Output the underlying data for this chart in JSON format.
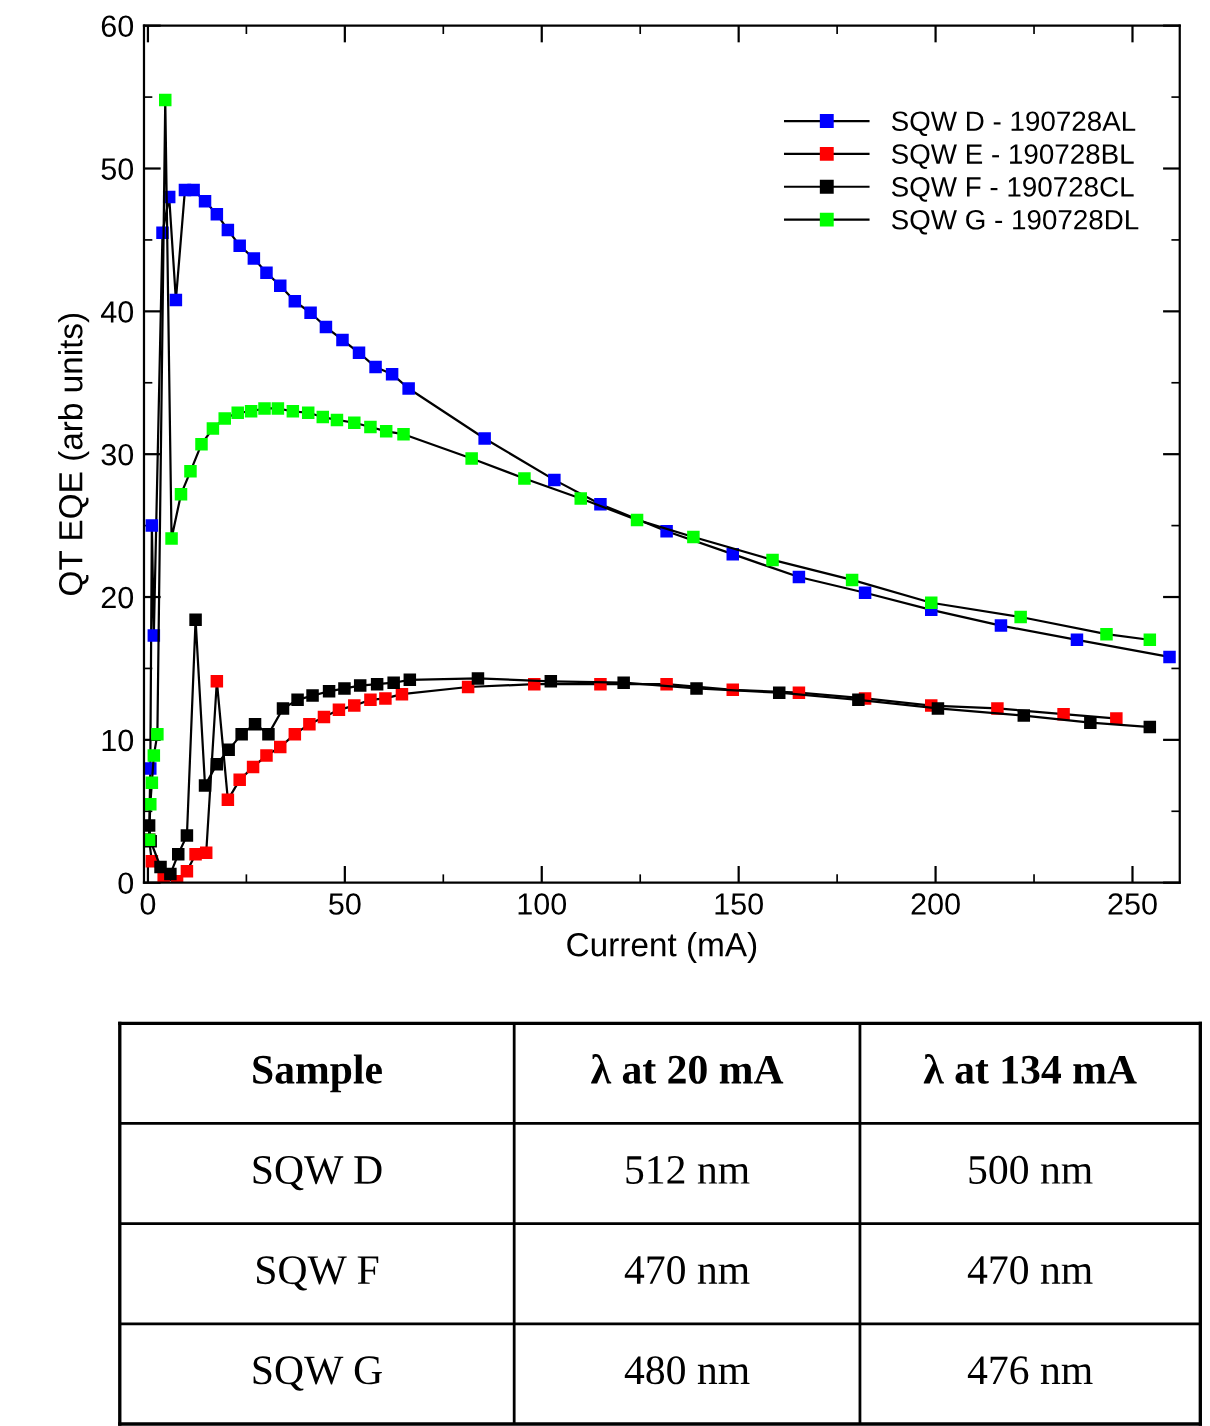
{
  "chart_data": [
    {
      "type": "line",
      "xlabel": "Current (mA)",
      "ylabel": "QT EQE (arb units)",
      "xlim": [
        -1,
        262
      ],
      "ylim": [
        0,
        60
      ],
      "xticks": [
        0,
        50,
        100,
        150,
        200,
        250
      ],
      "yticks": [
        0,
        10,
        20,
        30,
        40,
        50,
        60
      ],
      "marker": "square",
      "line_style": "solid",
      "legend": "top right",
      "grid": false,
      "series": [
        {
          "name": "SQW D - 190728AL",
          "color": "#0000ff",
          "x": [
            0.3,
            0.6,
            1,
            1.5,
            3.7,
            5.4,
            7.1,
            9.4,
            11.6,
            14.5,
            17.5,
            20.3,
            23.3,
            26.9,
            30.1,
            33.6,
            37.3,
            41.3,
            45.2,
            49.4,
            53.6,
            57.8,
            62,
            66.2,
            85.5,
            103.2,
            114.9,
            131.7,
            148.5,
            165.3,
            182.1,
            198.9,
            216.6,
            235.9,
            259.4
          ],
          "values": [
            3,
            8,
            25,
            17.3,
            45.5,
            48,
            40.8,
            48.5,
            48.5,
            47.7,
            46.8,
            45.7,
            44.6,
            43.7,
            42.7,
            41.8,
            40.7,
            39.9,
            38.9,
            38,
            37.1,
            36.1,
            35.6,
            34.6,
            31.1,
            28.2,
            26.5,
            24.6,
            23,
            21.4,
            20.3,
            19.1,
            18,
            17,
            15.8
          ]
        },
        {
          "name": "SQW E - 190728BL",
          "color": "#ff0000",
          "x": [
            0.3,
            1,
            4,
            7.4,
            9.9,
            12.1,
            14.8,
            17.5,
            20.3,
            23.3,
            26.7,
            30.1,
            33.6,
            37.3,
            41,
            44.7,
            48.5,
            52.4,
            56.5,
            60.3,
            64.5,
            81.3,
            98.1,
            114.9,
            131.7,
            148.5,
            165.3,
            182.1,
            198.9,
            215.7,
            232.5,
            245.9
          ],
          "values": [
            3,
            1.5,
            0.3,
            0.1,
            0.8,
            2,
            2.1,
            14.1,
            5.8,
            7.2,
            8.1,
            8.9,
            9.5,
            10.4,
            11.1,
            11.6,
            12.1,
            12.4,
            12.8,
            12.9,
            13.2,
            13.7,
            13.9,
            13.9,
            13.9,
            13.5,
            13.3,
            12.9,
            12.4,
            12.2,
            11.8,
            11.5
          ]
        },
        {
          "name": "SQW F - 190728CL",
          "color": "#000000",
          "x": [
            0.3,
            0.7,
            3.2,
            5.7,
            7.7,
            9.9,
            12.1,
            14.5,
            17.5,
            20.5,
            23.8,
            27.2,
            30.6,
            34.3,
            38,
            41.8,
            46,
            49.9,
            53.9,
            58.2,
            62.4,
            66.5,
            83.8,
            102.3,
            120.8,
            139.3,
            160.3,
            180.4,
            200.6,
            222.4,
            239.3,
            254.4
          ],
          "values": [
            4,
            2.9,
            1.1,
            0.6,
            2,
            3.3,
            18.4,
            6.8,
            8.3,
            9.3,
            10.4,
            11.1,
            10.4,
            12.2,
            12.8,
            13.1,
            13.4,
            13.6,
            13.8,
            13.9,
            14,
            14.2,
            14.3,
            14.1,
            14,
            13.6,
            13.3,
            12.8,
            12.2,
            11.7,
            11.2,
            10.9
          ]
        },
        {
          "name": "SQW G - 190728DL",
          "color": "#00ff00",
          "x": [
            0.3,
            0.6,
            1,
            1.5,
            2.4,
            4.4,
            6,
            8.4,
            10.8,
            13.6,
            16.5,
            19.5,
            22.8,
            26.2,
            29.6,
            33,
            36.8,
            40.7,
            44.4,
            48,
            52.4,
            56.5,
            60.5,
            64.9,
            82.2,
            95.6,
            109.9,
            124.2,
            138.5,
            158.6,
            178.8,
            198.9,
            221.6,
            243.4,
            254.4
          ],
          "values": [
            3,
            5.5,
            7,
            8.9,
            10.4,
            54.8,
            24.1,
            27.2,
            28.8,
            30.7,
            31.8,
            32.5,
            32.9,
            33,
            33.2,
            33.2,
            33,
            32.9,
            32.6,
            32.4,
            32.2,
            31.9,
            31.6,
            31.4,
            29.7,
            28.3,
            26.9,
            25.4,
            24.2,
            22.6,
            21.2,
            19.6,
            18.6,
            17.4,
            17
          ]
        }
      ]
    },
    {
      "type": "other",
      "annotations": [
        "Sample",
        "λ at 20 mA",
        "λ at 134 mA",
        "SQW D",
        "512 nm",
        "500 nm",
        "SQW F",
        "470 nm",
        "470 nm",
        "SQW G",
        "480 nm",
        "476 nm"
      ]
    }
  ]
}
